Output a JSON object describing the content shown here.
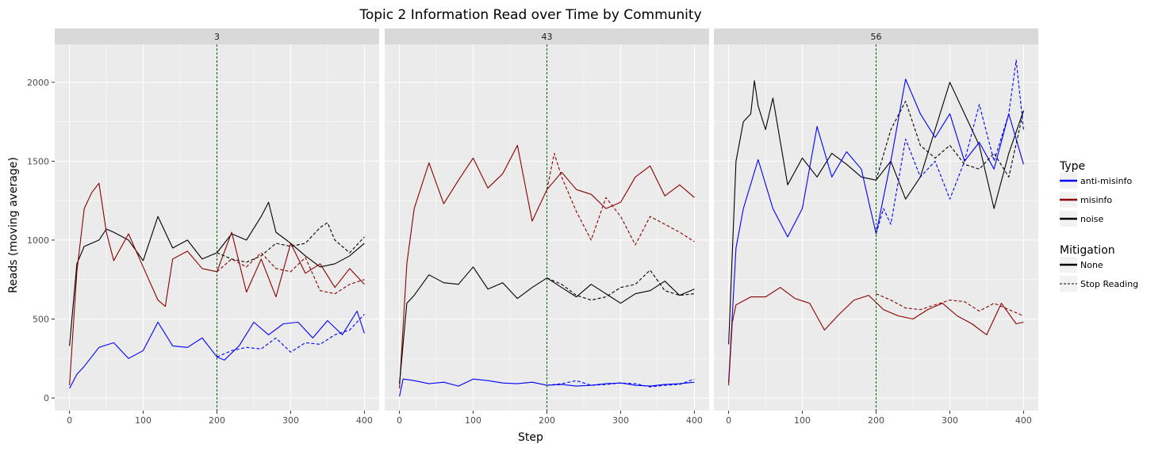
{
  "chart_data": {
    "type": "line",
    "title": "Topic 2 Information Read over Time by Community",
    "xlabel": "Step",
    "ylabel": "Reads (moving average)",
    "xlim": [
      -20,
      420
    ],
    "ylim": [
      -80,
      2240
    ],
    "x_ticks": [
      0,
      100,
      200,
      300,
      400
    ],
    "y_ticks": [
      0,
      500,
      1000,
      1500,
      2000
    ],
    "vline_x": 200,
    "vline_color": "#006400",
    "grid": true,
    "legend_position": "right",
    "legend": {
      "type_title": "Type",
      "type_entries": [
        {
          "label": "anti-misinfo",
          "color": "#0000ff"
        },
        {
          "label": "misinfo",
          "color": "#8b0000"
        },
        {
          "label": "noise",
          "color": "#000000"
        }
      ],
      "mitigation_title": "Mitigation",
      "mitigation_entries": [
        {
          "label": "None",
          "dash": "solid"
        },
        {
          "label": "Stop Reading",
          "dash": "dashed"
        }
      ]
    },
    "panels": [
      {
        "label": "3",
        "series": [
          {
            "type": "noise",
            "mitigation": "None",
            "x": [
              0,
              10,
              20,
              40,
              50,
              60,
              80,
              100,
              120,
              140,
              160,
              180,
              200,
              220,
              240,
              260,
              270,
              280,
              300,
              320,
              340,
              360,
              380,
              400
            ],
            "y": [
              330,
              850,
              960,
              1000,
              1070,
              1050,
              1000,
              870,
              1150,
              950,
              1000,
              880,
              920,
              1040,
              1000,
              1150,
              1240,
              1050,
              980,
              900,
              830,
              850,
              900,
              980
            ]
          },
          {
            "type": "noise",
            "mitigation": "Stop Reading",
            "x": [
              200,
              220,
              240,
              260,
              280,
              300,
              320,
              340,
              350,
              360,
              380,
              400
            ],
            "y": [
              920,
              880,
              860,
              900,
              980,
              960,
              980,
              1080,
              1110,
              1000,
              920,
              1020
            ]
          },
          {
            "type": "misinfo",
            "mitigation": "None",
            "x": [
              0,
              10,
              20,
              30,
              40,
              50,
              60,
              80,
              100,
              120,
              130,
              140,
              160,
              180,
              200,
              220,
              240,
              260,
              280,
              300,
              320,
              340,
              360,
              380,
              400
            ],
            "y": [
              80,
              800,
              1200,
              1300,
              1360,
              1050,
              870,
              1040,
              830,
              620,
              580,
              880,
              930,
              820,
              800,
              1050,
              670,
              880,
              640,
              980,
              790,
              850,
              700,
              820,
              720
            ]
          },
          {
            "type": "misinfo",
            "mitigation": "Stop Reading",
            "x": [
              200,
              220,
              240,
              260,
              280,
              300,
              320,
              340,
              360,
              380,
              400
            ],
            "y": [
              800,
              880,
              830,
              920,
              820,
              800,
              890,
              680,
              660,
              720,
              750
            ]
          },
          {
            "type": "anti-misinfo",
            "mitigation": "None",
            "x": [
              0,
              10,
              20,
              40,
              60,
              80,
              100,
              120,
              140,
              160,
              180,
              200,
              210,
              230,
              250,
              270,
              290,
              310,
              330,
              350,
              370,
              390,
              400
            ],
            "y": [
              60,
              150,
              200,
              320,
              350,
              250,
              300,
              480,
              330,
              320,
              380,
              260,
              240,
              330,
              480,
              400,
              470,
              480,
              380,
              490,
              400,
              550,
              410
            ]
          },
          {
            "type": "anti-misinfo",
            "mitigation": "Stop Reading",
            "x": [
              200,
              220,
              240,
              260,
              280,
              300,
              320,
              340,
              360,
              380,
              400
            ],
            "y": [
              260,
              300,
              320,
              310,
              380,
              290,
              350,
              340,
              400,
              430,
              530
            ]
          }
        ]
      },
      {
        "label": "43",
        "series": [
          {
            "type": "misinfo",
            "mitigation": "None",
            "x": [
              0,
              10,
              20,
              40,
              60,
              80,
              100,
              120,
              140,
              160,
              180,
              200,
              220,
              240,
              260,
              280,
              300,
              320,
              340,
              360,
              380,
              400
            ],
            "y": [
              60,
              850,
              1200,
              1490,
              1230,
              1380,
              1520,
              1330,
              1420,
              1600,
              1120,
              1320,
              1430,
              1320,
              1290,
              1200,
              1240,
              1400,
              1470,
              1280,
              1350,
              1270
            ]
          },
          {
            "type": "misinfo",
            "mitigation": "Stop Reading",
            "x": [
              200,
              210,
              220,
              240,
              260,
              280,
              300,
              320,
              340,
              360,
              380,
              400
            ],
            "y": [
              1320,
              1550,
              1400,
              1180,
              1000,
              1270,
              1150,
              970,
              1150,
              1100,
              1050,
              990
            ]
          },
          {
            "type": "noise",
            "mitigation": "None",
            "x": [
              0,
              10,
              20,
              40,
              60,
              80,
              100,
              120,
              140,
              160,
              180,
              200,
              220,
              240,
              260,
              280,
              300,
              320,
              340,
              360,
              380,
              400
            ],
            "y": [
              90,
              600,
              650,
              780,
              730,
              720,
              830,
              690,
              730,
              630,
              700,
              760,
              700,
              640,
              720,
              660,
              600,
              660,
              680,
              740,
              650,
              690
            ]
          },
          {
            "type": "noise",
            "mitigation": "Stop Reading",
            "x": [
              200,
              220,
              240,
              260,
              280,
              300,
              320,
              340,
              360,
              380,
              400
            ],
            "y": [
              760,
              720,
              650,
              620,
              640,
              700,
              720,
              810,
              680,
              650,
              660
            ]
          },
          {
            "type": "anti-misinfo",
            "mitigation": "None",
            "x": [
              0,
              5,
              20,
              40,
              60,
              80,
              100,
              120,
              140,
              160,
              180,
              200,
              220,
              240,
              260,
              280,
              300,
              320,
              340,
              360,
              380,
              400
            ],
            "y": [
              10,
              120,
              110,
              90,
              100,
              75,
              120,
              110,
              95,
              90,
              100,
              80,
              85,
              75,
              80,
              90,
              95,
              80,
              75,
              85,
              90,
              100
            ]
          },
          {
            "type": "anti-misinfo",
            "mitigation": "Stop Reading",
            "x": [
              200,
              220,
              240,
              260,
              280,
              300,
              320,
              340,
              360,
              380,
              400
            ],
            "y": [
              80,
              90,
              110,
              80,
              85,
              95,
              90,
              70,
              80,
              85,
              120
            ]
          }
        ]
      },
      {
        "label": "56",
        "series": [
          {
            "type": "noise",
            "mitigation": "None",
            "x": [
              0,
              10,
              20,
              30,
              35,
              40,
              50,
              60,
              80,
              100,
              120,
              140,
              160,
              180,
              200,
              220,
              240,
              260,
              280,
              300,
              320,
              340,
              360,
              380,
              400
            ],
            "y": [
              340,
              1500,
              1750,
              1800,
              2010,
              1850,
              1700,
              1900,
              1350,
              1520,
              1400,
              1550,
              1480,
              1400,
              1380,
              1500,
              1260,
              1400,
              1700,
              2000,
              1800,
              1600,
              1200,
              1550,
              1820
            ]
          },
          {
            "type": "noise",
            "mitigation": "Stop Reading",
            "x": [
              200,
              220,
              240,
              260,
              280,
              300,
              320,
              340,
              360,
              380,
              400
            ],
            "y": [
              1380,
              1700,
              1880,
              1600,
              1520,
              1600,
              1480,
              1450,
              1550,
              1400,
              1820
            ]
          },
          {
            "type": "anti-misinfo",
            "mitigation": "None",
            "x": [
              0,
              10,
              20,
              40,
              60,
              80,
              100,
              120,
              140,
              160,
              180,
              200,
              220,
              240,
              260,
              280,
              300,
              320,
              340,
              360,
              380,
              400
            ],
            "y": [
              100,
              950,
              1200,
              1510,
              1200,
              1020,
              1200,
              1720,
              1400,
              1560,
              1450,
              1040,
              1500,
              2020,
              1800,
              1650,
              1800,
              1500,
              1620,
              1450,
              1800,
              1480
            ]
          },
          {
            "type": "anti-misinfo",
            "mitigation": "Stop Reading",
            "x": [
              200,
              210,
              220,
              240,
              260,
              280,
              300,
              320,
              340,
              360,
              380,
              390,
              400
            ],
            "y": [
              1040,
              1200,
              1100,
              1640,
              1400,
              1500,
              1260,
              1500,
              1860,
              1500,
              1800,
              2140,
              1700
            ]
          },
          {
            "type": "misinfo",
            "mitigation": "None",
            "x": [
              0,
              5,
              10,
              30,
              50,
              70,
              90,
              110,
              130,
              150,
              170,
              190,
              210,
              230,
              250,
              270,
              290,
              310,
              330,
              350,
              370,
              390,
              400
            ],
            "y": [
              80,
              480,
              590,
              640,
              640,
              700,
              630,
              600,
              430,
              530,
              620,
              650,
              560,
              520,
              500,
              560,
              600,
              520,
              470,
              400,
              600,
              470,
              480
            ]
          },
          {
            "type": "misinfo",
            "mitigation": "Stop Reading",
            "x": [
              200,
              220,
              240,
              260,
              280,
              300,
              320,
              340,
              360,
              380,
              400
            ],
            "y": [
              660,
              620,
              570,
              560,
              590,
              620,
              610,
              550,
              600,
              560,
              520
            ]
          }
        ]
      }
    ]
  }
}
